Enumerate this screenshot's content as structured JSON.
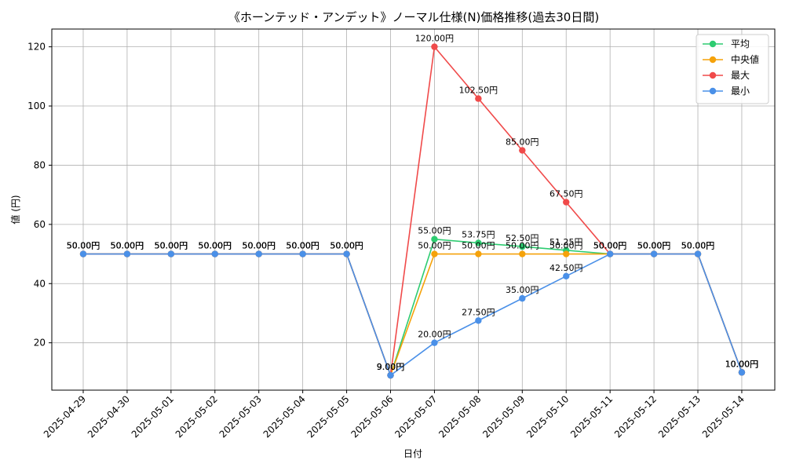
{
  "chart_data": {
    "type": "line",
    "title": "《ホーンテッド・アンデット》ノーマル仕様(N)価格推移(過去30日間)",
    "xlabel": "日付",
    "ylabel": "値 (円)",
    "ylim": [
      4,
      126
    ],
    "yticks": [
      20,
      40,
      60,
      80,
      100,
      120
    ],
    "grid": true,
    "legend_position": "top-right",
    "label_suffix": "円",
    "categories": [
      "2025-04-29",
      "2025-04-30",
      "2025-05-01",
      "2025-05-02",
      "2025-05-03",
      "2025-05-04",
      "2025-05-05",
      "2025-05-06",
      "2025-05-07",
      "2025-05-08",
      "2025-05-09",
      "2025-05-10",
      "2025-05-11",
      "2025-05-12",
      "2025-05-13",
      "2025-05-14"
    ],
    "series": [
      {
        "name": "平均",
        "color": "#2ecc71",
        "values": [
          50,
          50,
          50,
          50,
          50,
          50,
          50,
          9,
          55,
          53.75,
          52.5,
          51.25,
          50,
          50,
          50,
          10
        ]
      },
      {
        "name": "中央値",
        "color": "#f5a20a",
        "values": [
          50,
          50,
          50,
          50,
          50,
          50,
          50,
          9,
          50,
          50,
          50,
          50,
          50,
          50,
          50,
          10
        ]
      },
      {
        "name": "最大",
        "color": "#f04a4a",
        "values": [
          50,
          50,
          50,
          50,
          50,
          50,
          50,
          9,
          120,
          102.5,
          85,
          67.5,
          50,
          50,
          50,
          10
        ]
      },
      {
        "name": "最小",
        "color": "#4a90e8",
        "values": [
          50,
          50,
          50,
          50,
          50,
          50,
          50,
          9,
          20,
          27.5,
          35,
          42.5,
          50,
          50,
          50,
          10
        ]
      }
    ]
  }
}
